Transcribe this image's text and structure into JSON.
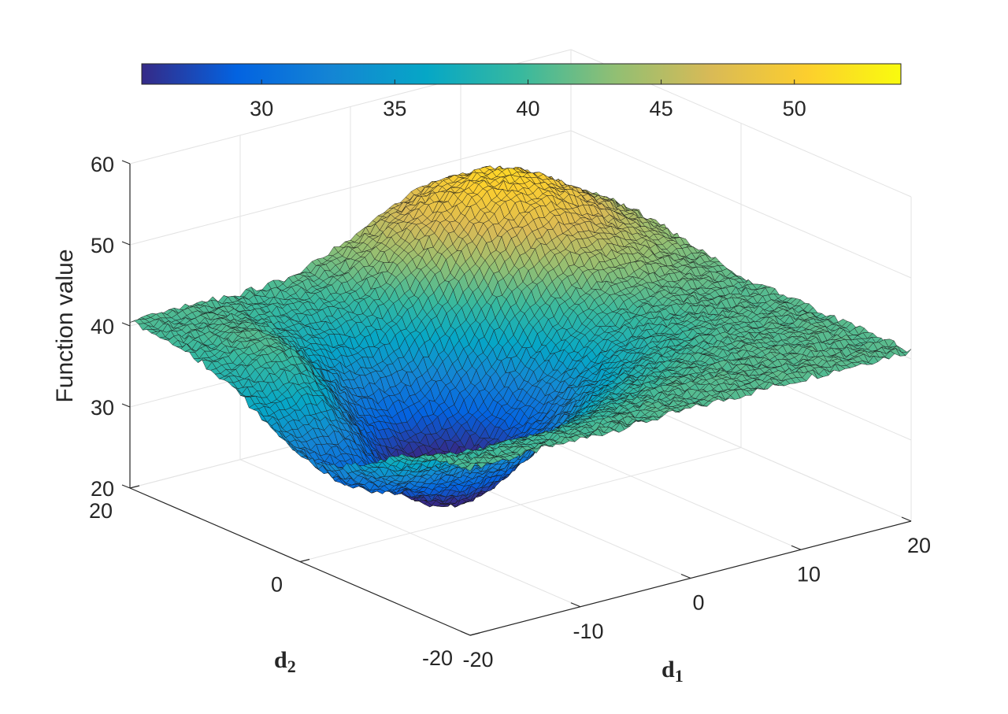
{
  "chart_data": {
    "type": "surface",
    "x_axis": {
      "label": "d",
      "label_subscript": "1",
      "range": [
        -20,
        20
      ],
      "ticks": [
        -20,
        -10,
        0,
        10,
        20
      ],
      "tick_labels": [
        "-20",
        "-10",
        "0",
        "10",
        "20"
      ]
    },
    "y_axis": {
      "label": "d",
      "label_subscript": "2",
      "range": [
        -20,
        20
      ],
      "ticks": [
        -20,
        0,
        20
      ],
      "tick_labels": [
        "-20",
        "0",
        "20"
      ]
    },
    "z_axis": {
      "label": "Function value",
      "range": [
        20,
        60
      ],
      "ticks": [
        20,
        30,
        40,
        50,
        60
      ],
      "tick_labels": [
        "20",
        "30",
        "40",
        "50",
        "60"
      ]
    },
    "colorbar": {
      "location": "top",
      "colormap": "parula",
      "range": [
        25.5,
        54
      ],
      "ticks": [
        30,
        35,
        40,
        45,
        50
      ],
      "tick_labels": [
        "30",
        "35",
        "40",
        "45",
        "50"
      ],
      "colors": [
        "#352a87",
        "#0363e1",
        "#1485d4",
        "#06a7c6",
        "#38b99e",
        "#92bf73",
        "#d9ba56",
        "#fcce2e",
        "#f9fb0e"
      ]
    },
    "grid": true,
    "view": "3d-perspective",
    "surface": {
      "baseline": 41,
      "grid_resolution": 81,
      "features": [
        {
          "kind": "peak",
          "d1": 8,
          "d2": 13,
          "height": 53
        },
        {
          "kind": "valley",
          "d1": -6,
          "d2": 4,
          "depth": 26
        },
        {
          "kind": "ridge",
          "d1": -14,
          "d2": 6,
          "height": 47
        }
      ],
      "surface_range": [
        25.5,
        54
      ]
    }
  }
}
